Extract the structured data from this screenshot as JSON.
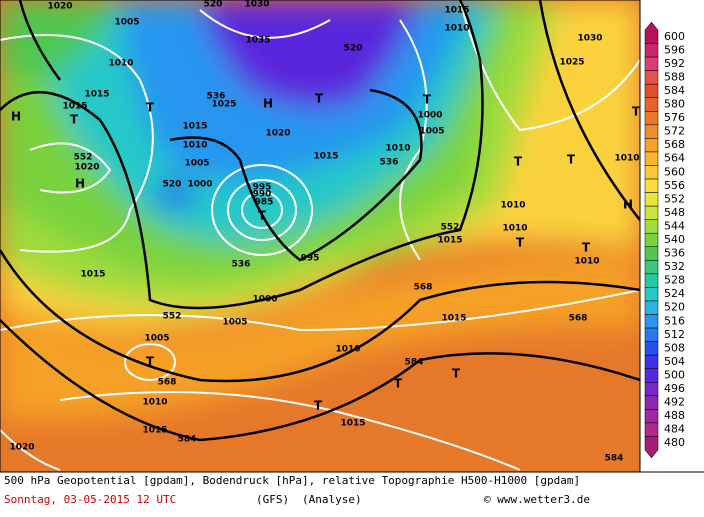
{
  "map": {
    "labels": [
      "1020",
      "520",
      "1030",
      "1015",
      "1010",
      "1005",
      "1035",
      "520",
      "1030",
      "1010",
      "1025",
      "1015",
      "1015",
      "T",
      "H",
      "T",
      "536",
      "1025",
      "H",
      "T",
      "T",
      "1000",
      "1015",
      "1020",
      "1005",
      "T",
      "1010",
      "1015",
      "1010",
      "536",
      "552",
      "1020",
      "H",
      "1005",
      "520",
      "1000",
      "995",
      "990",
      "985",
      "T",
      "T",
      "T",
      "1010",
      "1010",
      "H",
      "552",
      "1015",
      "1010",
      "T",
      "T",
      "1010",
      "536",
      "995",
      "1015",
      "1000",
      "568",
      "552",
      "1005",
      "1015",
      "568",
      "1005",
      "1010",
      "T",
      "584",
      "T",
      "568",
      "T",
      "1010",
      "T",
      "1015",
      "1015",
      "584",
      "1020",
      "584"
    ]
  },
  "legend": {
    "values": [
      600,
      596,
      592,
      588,
      584,
      580,
      576,
      572,
      568,
      564,
      560,
      556,
      552,
      548,
      544,
      540,
      536,
      532,
      528,
      524,
      520,
      516,
      512,
      508,
      504,
      500,
      496,
      492,
      488,
      484,
      480
    ],
    "colors": [
      "#b4145a",
      "#c8286e",
      "#dc3c78",
      "#e65050",
      "#e0502a",
      "#e66428",
      "#eb7828",
      "#f08c28",
      "#f5a028",
      "#fab432",
      "#ffc83c",
      "#fadc3c",
      "#e6e63c",
      "#c8e63c",
      "#a0dc3c",
      "#78d23c",
      "#50c850",
      "#3cc878",
      "#28c8a0",
      "#28c8c8",
      "#28b4e6",
      "#2896f0",
      "#2878f0",
      "#2850f0",
      "#3c32e6",
      "#5a28dc",
      "#7828c8",
      "#8c28b4",
      "#a028a0",
      "#b4288c",
      "#a01e78"
    ]
  },
  "footer": {
    "title": "500 hPa Geopotential [gpdam], Bodendruck [hPa], relative Topographie H500-H1000 [gpdam]",
    "date": "Sonntag, 03-05-2015  12 UTC",
    "model": "(GFS)",
    "run": "(Analyse)",
    "credit": "© www.wetter3.de"
  }
}
